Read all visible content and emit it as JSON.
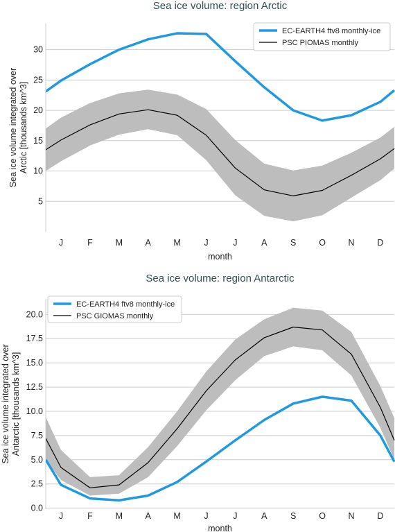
{
  "colors": {
    "model": "#1f9ae0",
    "obs": "#000000",
    "band": "#bdbdbd",
    "grid": "#cccccc"
  },
  "chart_data": [
    {
      "type": "line",
      "title": "Sea ice volume: region Arctic",
      "xlabel": "month",
      "ylabel": [
        "Sea ice volume integrated over",
        "Arctic [thousands km^3]"
      ],
      "categories": [
        "J",
        "F",
        "M",
        "A",
        "M",
        "J",
        "J",
        "A",
        "S",
        "O",
        "N",
        "D"
      ],
      "ylim": [
        0,
        34.3
      ],
      "yticks": [
        "5",
        "10",
        "15",
        "20",
        "25",
        "30"
      ],
      "ytick_values": [
        5,
        10,
        15,
        20,
        25,
        30
      ],
      "grid": "horizontal",
      "legend_position": "top-right",
      "series": [
        {
          "name": "EC-EARTH4 ftv8 monthly-ice",
          "values": [
            24.9,
            27.6,
            30.0,
            31.7,
            32.7,
            32.6,
            28.1,
            23.8,
            20.0,
            18.3,
            19.2,
            21.4
          ]
        },
        {
          "name": "PSC PIOMAS monthly",
          "values": [
            15.1,
            17.6,
            19.4,
            20.1,
            19.2,
            15.9,
            10.5,
            6.9,
            5.9,
            6.8,
            9.3,
            12.0
          ]
        }
      ],
      "band": {
        "lower": [
          11.6,
          14.2,
          16.0,
          16.9,
          15.9,
          11.8,
          6.0,
          2.6,
          1.7,
          2.7,
          5.6,
          8.5
        ],
        "upper": [
          18.8,
          21.2,
          22.8,
          23.4,
          22.6,
          20.2,
          15.1,
          11.2,
          10.1,
          10.9,
          13.0,
          15.5
        ]
      },
      "edges": {
        "model": [
          23.1,
          23.3
        ],
        "obs": [
          13.5,
          13.7
        ],
        "lower": [
          10.0,
          10.4
        ],
        "upper": [
          17.0,
          17.3
        ]
      }
    },
    {
      "type": "line",
      "title": "Sea ice volume: region Antarctic",
      "xlabel": "month",
      "ylabel": [
        "Sea ice volume integrated over",
        "Antarctic [thousands km^3]"
      ],
      "categories": [
        "J",
        "F",
        "M",
        "A",
        "M",
        "J",
        "J",
        "A",
        "S",
        "O",
        "N",
        "D"
      ],
      "ylim": [
        -0.1,
        21.6
      ],
      "yticks": [
        "0.0",
        "2.5",
        "5.0",
        "7.5",
        "10.0",
        "12.5",
        "15.0",
        "17.5",
        "20.0"
      ],
      "ytick_values": [
        0,
        2.5,
        5,
        7.5,
        10,
        12.5,
        15,
        17.5,
        20
      ],
      "grid": "horizontal",
      "legend_position": "top-left",
      "series": [
        {
          "name": "EC-EARTH4 ftv8 monthly-ice",
          "values": [
            2.4,
            1.0,
            0.8,
            1.3,
            2.7,
            4.8,
            7.0,
            9.1,
            10.8,
            11.5,
            11.1,
            7.5
          ]
        },
        {
          "name": "PSC GIOMAS monthly",
          "values": [
            4.2,
            2.1,
            2.4,
            4.7,
            8.2,
            12.1,
            15.3,
            17.6,
            18.7,
            18.4,
            15.9,
            10.4
          ]
        }
      ],
      "band": {
        "lower": [
          2.9,
          1.3,
          1.5,
          3.2,
          6.4,
          10.1,
          13.2,
          15.7,
          16.7,
          16.3,
          13.7,
          8.3
        ],
        "upper": [
          6.0,
          3.2,
          3.4,
          6.3,
          10.0,
          14.1,
          17.4,
          19.5,
          20.7,
          20.4,
          18.2,
          12.6
        ]
      },
      "edges": {
        "model": [
          5.0,
          4.8
        ],
        "obs": [
          7.2,
          7.0
        ],
        "lower": [
          5.0,
          5.0
        ],
        "upper": [
          9.4,
          9.3
        ]
      }
    }
  ]
}
